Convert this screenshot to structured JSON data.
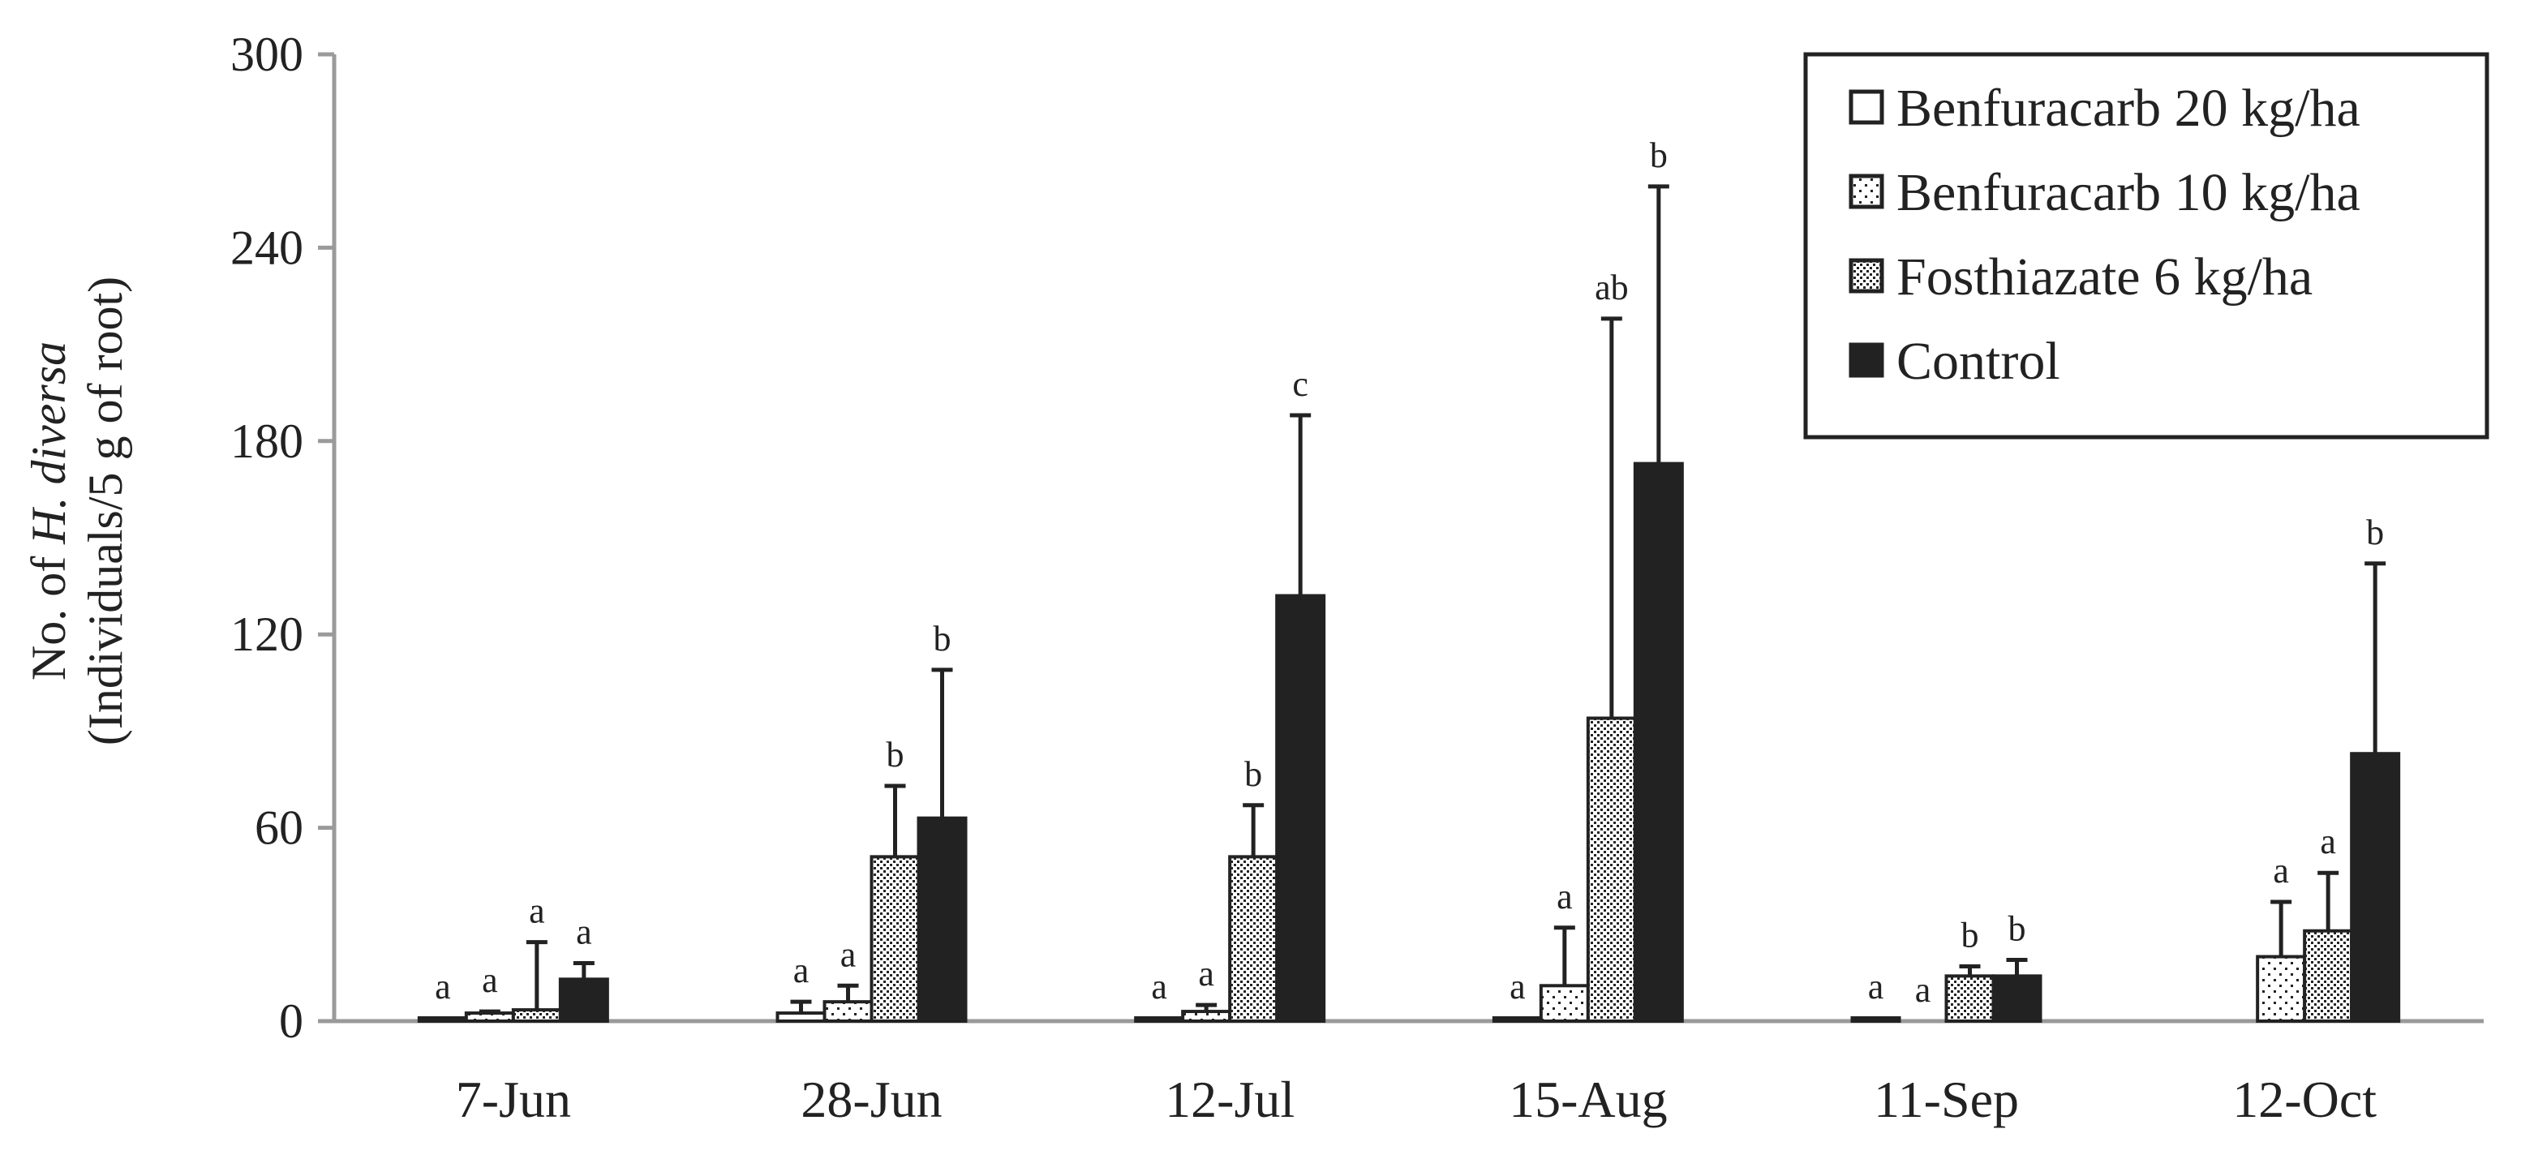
{
  "chart_data": {
    "type": "bar",
    "ylabel_prefix": "No. of ",
    "ylabel_italic": "H. diversa",
    "ylabel_line2": "(Individuals/5 g of root)",
    "xlabel": "",
    "ylim": [
      0,
      300
    ],
    "yticks": [
      "0",
      "60",
      "120",
      "180",
      "240",
      "300"
    ],
    "grid": false,
    "legend_position": "top-right",
    "categories": [
      "7-Jun",
      "28-Jun",
      "12-Jul",
      "15-Aug",
      "11-Sep",
      "12-Oct"
    ],
    "series": [
      {
        "name": "Benfuracarb 20 kg/ha",
        "pattern": "empty",
        "values": [
          1,
          2.5,
          1,
          1,
          1,
          0
        ],
        "errors": [
          0,
          3.5,
          0,
          0,
          0,
          0
        ],
        "letters": [
          "a",
          "a",
          "a",
          "a",
          "a",
          ""
        ]
      },
      {
        "name": "Benfuracarb 10 kg/ha",
        "pattern": "sparse-dots",
        "values": [
          2.5,
          6,
          3,
          11,
          0,
          20
        ],
        "errors": [
          0.5,
          5,
          2,
          18,
          0,
          17
        ],
        "letters": [
          "a",
          "a",
          "a",
          "a",
          "a",
          "a"
        ]
      },
      {
        "name": "Fosthiazate 6 kg/ha",
        "pattern": "dense-dots",
        "values": [
          3.5,
          51,
          51,
          94,
          14,
          28
        ],
        "errors": [
          21,
          22,
          16,
          124,
          3,
          18
        ],
        "letters": [
          "a",
          "b",
          "b",
          "ab",
          "b",
          "a"
        ]
      },
      {
        "name": "Control",
        "pattern": "solid",
        "values": [
          13,
          63,
          132,
          173,
          14,
          83
        ],
        "errors": [
          5,
          46,
          56,
          86,
          5,
          59
        ],
        "letters": [
          "a",
          "b",
          "c",
          "b",
          "b",
          "b"
        ]
      }
    ]
  },
  "colors": {
    "axis": "#9a9a9a",
    "bar_stroke": "#222222",
    "solid_fill": "#222222",
    "background": "#ffffff"
  }
}
